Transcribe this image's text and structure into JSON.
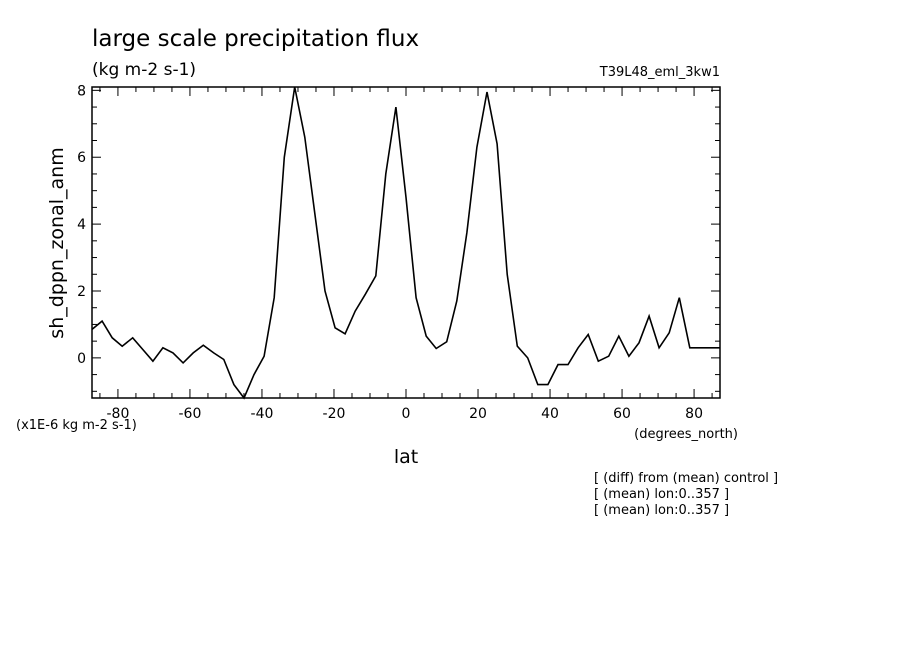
{
  "chart_data": {
    "type": "line",
    "title": "large scale precipitation flux",
    "units": "(kg m-2 s-1)",
    "experiment": "T39L48_eml_3kw1",
    "xlabel": "lat",
    "x_units": "(degrees_north)",
    "ylabel": "sh_dppn_zonal_anm",
    "y_scale_note": "(x1E-6 kg m-2 s-1)",
    "xlim": [
      -87.2,
      87.2
    ],
    "ylim": [
      -1.2,
      8.1
    ],
    "x_ticks": [
      -80,
      -60,
      -40,
      -20,
      0,
      20,
      40,
      60,
      80
    ],
    "x_tick_labels": [
      "-80",
      "-60",
      "-40",
      "-20",
      "0",
      "20",
      "40",
      "60",
      "80"
    ],
    "y_ticks": [
      0,
      2,
      4,
      6,
      8
    ],
    "y_tick_labels": [
      "0",
      "2",
      "4",
      "6",
      "8"
    ],
    "grid": false,
    "series": [
      {
        "x": [
          -87.2,
          -84.4,
          -81.6,
          -78.8,
          -75.9,
          -73.1,
          -70.3,
          -67.5,
          -64.7,
          -61.9,
          -59.1,
          -56.3,
          -53.4,
          -50.6,
          -47.8,
          -45.0,
          -42.2,
          -39.4,
          -36.6,
          -33.8,
          -30.9,
          -28.1,
          -25.3,
          -22.5,
          -19.7,
          -16.9,
          -14.1,
          -11.3,
          -8.4,
          -5.6,
          -2.8,
          0.0,
          2.8,
          5.6,
          8.4,
          11.3,
          14.1,
          16.9,
          19.7,
          22.5,
          25.3,
          28.1,
          30.9,
          33.8,
          36.6,
          39.4,
          42.2,
          45.0,
          47.8,
          50.6,
          53.4,
          56.3,
          59.1,
          61.9,
          64.7,
          67.5,
          70.3,
          73.1,
          75.9,
          78.8,
          81.6,
          84.4,
          87.2
        ],
        "y": [
          0.85,
          1.1,
          0.6,
          0.35,
          0.6,
          0.25,
          -0.1,
          0.3,
          0.15,
          -0.15,
          0.15,
          0.38,
          0.15,
          -0.05,
          -0.8,
          -1.2,
          -0.5,
          0.05,
          1.8,
          6.0,
          8.1,
          6.6,
          4.3,
          2.0,
          0.9,
          0.72,
          1.4,
          1.9,
          2.45,
          5.5,
          7.5,
          4.8,
          1.8,
          0.65,
          0.28,
          0.48,
          1.7,
          3.75,
          6.3,
          7.95,
          6.4,
          2.5,
          0.35,
          0.0,
          -0.8,
          -0.8,
          -0.2,
          -0.2,
          0.3,
          0.7,
          -0.1,
          0.05,
          0.65,
          0.05,
          0.45,
          1.25,
          0.3,
          0.75,
          1.8,
          0.3,
          0.3,
          0.3,
          0.3
        ]
      }
    ]
  },
  "annotations": [
    "[ (diff) from (mean) control ]",
    "[ (mean) lon:0..357 ]",
    "[ (mean) lon:0..357 ]"
  ]
}
